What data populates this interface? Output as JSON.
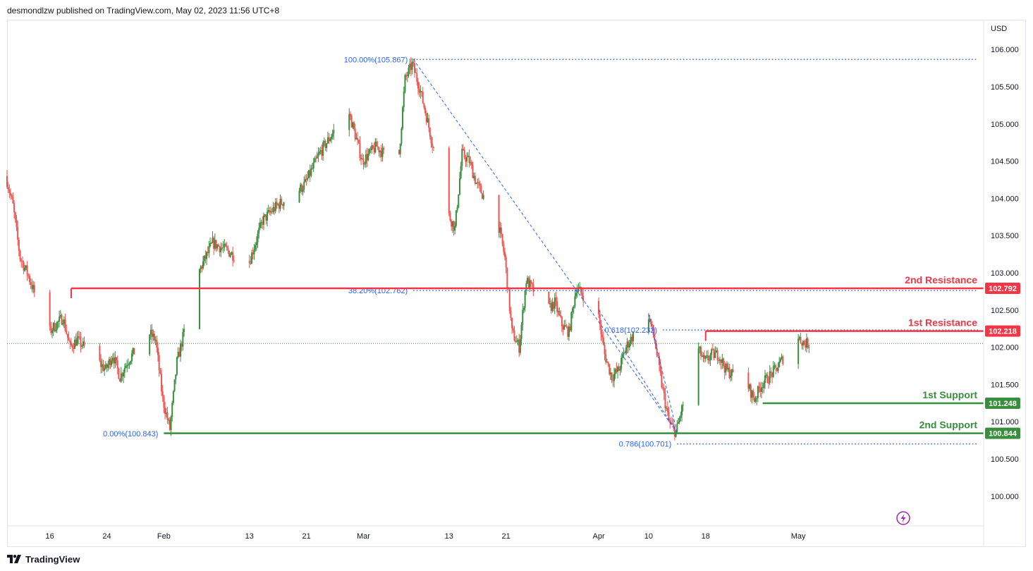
{
  "header": {
    "publisher_line": "desmondlzw published on TradingView.com, May 02, 2023 11:56 UTC+8"
  },
  "footer": {
    "brand": "TradingView",
    "logo_icon": "tradingview-logo-icon"
  },
  "colors": {
    "up": "#388e3c",
    "down": "#ef5350",
    "resistance": "#f23645",
    "support": "#388e3c",
    "fib": "#2962ff",
    "snapshot_icon": "#9c27b0"
  },
  "chart_data": {
    "type": "candlestick",
    "instrument_currency": "USD",
    "ylim": [
      99.6,
      106.4
    ],
    "y_ticks": [
      "106.000",
      "105.500",
      "105.000",
      "104.500",
      "104.000",
      "103.500",
      "103.000",
      "102.500",
      "102.000",
      "101.500",
      "101.000",
      "100.500",
      "100.000"
    ],
    "y_tick_values": [
      106.0,
      105.5,
      105.0,
      104.5,
      104.0,
      103.5,
      103.0,
      102.5,
      102.0,
      101.5,
      101.0,
      100.5,
      100.0
    ],
    "x_ticks": [
      {
        "label": "16",
        "date": "2023-01-16"
      },
      {
        "label": "24",
        "date": "2023-01-24"
      },
      {
        "label": "Feb",
        "date": "2023-02-01"
      },
      {
        "label": "13",
        "date": "2023-02-13"
      },
      {
        "label": "21",
        "date": "2023-02-21"
      },
      {
        "label": "Mar",
        "date": "2023-03-01"
      },
      {
        "label": "13",
        "date": "2023-03-13"
      },
      {
        "label": "21",
        "date": "2023-03-21"
      },
      {
        "label": "Apr",
        "date": "2023-04-03"
      },
      {
        "label": "10",
        "date": "2023-04-10"
      },
      {
        "label": "18",
        "date": "2023-04-18"
      },
      {
        "label": "May",
        "date": "2023-05-01"
      }
    ],
    "price_path": [
      [
        "2023-01-10",
        104.3
      ],
      [
        "2023-01-11",
        103.9
      ],
      [
        "2023-01-12",
        103.2
      ],
      [
        "2023-01-13",
        103.0
      ],
      [
        "2023-01-16",
        102.2
      ],
      [
        "2023-01-17",
        102.3
      ],
      [
        "2023-01-18",
        102.4
      ],
      [
        "2023-01-19",
        102.0
      ],
      [
        "2023-01-20",
        102.1
      ],
      [
        "2023-01-23",
        101.8
      ],
      [
        "2023-01-24",
        101.7
      ],
      [
        "2023-01-25",
        101.9
      ],
      [
        "2023-01-26",
        101.6
      ],
      [
        "2023-01-27",
        101.8
      ],
      [
        "2023-01-30",
        102.2
      ],
      [
        "2023-01-31",
        102.1
      ],
      [
        "2023-02-01",
        101.3
      ],
      [
        "2023-02-02",
        100.9
      ],
      [
        "2023-02-03",
        101.8
      ],
      [
        "2023-02-06",
        103.0
      ],
      [
        "2023-02-08",
        103.4
      ],
      [
        "2023-02-10",
        103.3
      ],
      [
        "2023-02-13",
        103.1
      ],
      [
        "2023-02-15",
        103.7
      ],
      [
        "2023-02-17",
        103.9
      ],
      [
        "2023-02-20",
        104.1
      ],
      [
        "2023-02-21",
        104.2
      ],
      [
        "2023-02-23",
        104.6
      ],
      [
        "2023-02-27",
        105.2
      ],
      [
        "2023-03-01",
        104.5
      ],
      [
        "2023-03-03",
        104.7
      ],
      [
        "2023-03-06",
        104.4
      ],
      [
        "2023-03-07",
        105.6
      ],
      [
        "2023-03-08",
        105.8
      ],
      [
        "2023-03-09",
        105.5
      ],
      [
        "2023-03-10",
        105.1
      ],
      [
        "2023-03-13",
        103.8
      ],
      [
        "2023-03-14",
        103.6
      ],
      [
        "2023-03-15",
        104.6
      ],
      [
        "2023-03-16",
        104.5
      ],
      [
        "2023-03-17",
        104.2
      ],
      [
        "2023-03-20",
        103.7
      ],
      [
        "2023-03-21",
        103.2
      ],
      [
        "2023-03-22",
        102.2
      ],
      [
        "2023-03-23",
        102.0
      ],
      [
        "2023-03-24",
        102.9
      ],
      [
        "2023-03-27",
        102.5
      ],
      [
        "2023-03-28",
        102.6
      ],
      [
        "2023-03-29",
        102.3
      ],
      [
        "2023-03-30",
        102.2
      ],
      [
        "2023-03-31",
        102.8
      ],
      [
        "2023-04-03",
        102.5
      ],
      [
        "2023-04-04",
        101.9
      ],
      [
        "2023-04-05",
        101.6
      ],
      [
        "2023-04-06",
        101.7
      ],
      [
        "2023-04-07",
        102.0
      ],
      [
        "2023-04-10",
        102.5
      ],
      [
        "2023-04-11",
        102.1
      ],
      [
        "2023-04-12",
        101.5
      ],
      [
        "2023-04-13",
        101.0
      ],
      [
        "2023-04-14",
        100.85
      ],
      [
        "2023-04-17",
        102.0
      ],
      [
        "2023-04-18",
        101.8
      ],
      [
        "2023-04-19",
        101.9
      ],
      [
        "2023-04-20",
        101.9
      ],
      [
        "2023-04-21",
        101.7
      ],
      [
        "2023-04-24",
        101.5
      ],
      [
        "2023-04-25",
        101.3
      ],
      [
        "2023-04-26",
        101.5
      ],
      [
        "2023-04-27",
        101.6
      ],
      [
        "2023-04-28",
        101.7
      ],
      [
        "2023-05-01",
        102.15
      ],
      [
        "2023-05-02",
        102.05
      ]
    ],
    "current_price": 102.05,
    "levels": [
      {
        "name": "2nd Resistance",
        "price": 102.792,
        "price_label": "102.792",
        "kind": "resistance",
        "start_date": "2023-01-19"
      },
      {
        "name": "1st Resistance",
        "price": 102.218,
        "price_label": "102.218",
        "kind": "resistance",
        "start_date": "2023-04-18"
      },
      {
        "name": "1st Support",
        "price": 101.248,
        "price_label": "101.248",
        "kind": "support",
        "start_date": "2023-04-26"
      },
      {
        "name": "2nd Support",
        "price": 100.844,
        "price_label": "100.844",
        "kind": "support",
        "start_date": "2023-02-01"
      }
    ],
    "fib_levels": [
      {
        "label": "100.00%(105.867)",
        "price": 105.867,
        "start_date": "2023-03-08"
      },
      {
        "label": "38.20%(102.762)",
        "price": 102.762,
        "start_date": "2023-03-08"
      },
      {
        "label": "0.618(102.232)",
        "price": 102.232,
        "start_date": "2023-04-12"
      },
      {
        "label": "0.786(100.701)",
        "price": 100.701,
        "start_date": "2023-04-14"
      },
      {
        "label": "0.00%(100.843)",
        "price": 100.843,
        "start_date": "2023-02-01"
      }
    ],
    "trend_lines": [
      {
        "from": [
          "2023-03-08",
          105.867
        ],
        "to": [
          "2023-04-14",
          100.85
        ]
      },
      {
        "from": [
          "2023-04-03",
          102.5
        ],
        "to": [
          "2023-04-14",
          100.85
        ]
      },
      {
        "from": [
          "2023-04-10",
          102.45
        ],
        "to": [
          "2023-04-14",
          100.85
        ]
      }
    ]
  }
}
